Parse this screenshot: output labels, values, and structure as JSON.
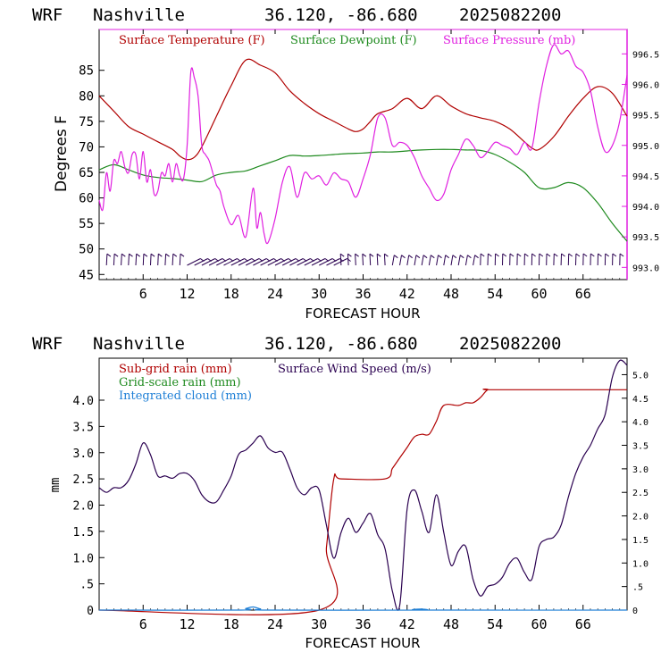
{
  "panels": [
    {
      "header": {
        "model": "WRF",
        "location": "Nashville",
        "coords": "36.120, -86.680",
        "run": "2025082200"
      },
      "xlabel": "FORECAST HOUR",
      "ylabel_left": "Degrees F",
      "legend": [
        "Surface Temperature (F)",
        "Surface Dewpoint (F)",
        "Surface Pressure (mb)"
      ]
    },
    {
      "header": {
        "model": "WRF",
        "location": "Nashville",
        "coords": "36.120, -86.680",
        "run": "2025082200"
      },
      "xlabel": "FORECAST HOUR",
      "ylabel_left": "mm",
      "legend": [
        "Sub-grid rain (mm)",
        "Surface Wind Speed (m/s)",
        "Grid-scale rain (mm)",
        "Integrated cloud (mm)"
      ]
    }
  ],
  "colors": {
    "temperature": "#b00000",
    "dewpoint": "#1e8a1e",
    "pressure": "#e020e0",
    "subgrid_rain": "#b00000",
    "wind": "#2a0050",
    "gridscale_rain": "#1e8a1e",
    "cloud": "#1e7fd6",
    "frame_left": "#000000",
    "frame_right_top": "#e020e0"
  },
  "chart_data": [
    {
      "type": "line",
      "title": "",
      "xlabel": "FORECAST HOUR",
      "ylabel": "Degrees F",
      "xlim": [
        0,
        72
      ],
      "ylim": [
        44,
        93
      ],
      "y2lim": [
        992.8,
        996.9
      ],
      "xticks": [
        "6",
        "12",
        "18",
        "24",
        "30",
        "36",
        "42",
        "48",
        "54",
        "60",
        "66"
      ],
      "yticks": [
        "45",
        "50",
        "55",
        "60",
        "65",
        "70",
        "75",
        "80",
        "85"
      ],
      "y2ticks": [
        "993.0",
        "993.5",
        "994.0",
        "994.5",
        "995.0",
        "995.5",
        "996.0",
        "996.5"
      ],
      "series": [
        {
          "name": "Surface Temperature (F)",
          "axis": "left",
          "x": [
            0,
            2,
            4,
            6,
            8,
            10,
            11,
            12,
            13,
            14,
            16,
            18,
            20,
            22,
            24,
            26,
            28,
            30,
            32,
            34,
            35,
            36,
            37,
            38,
            40,
            42,
            44,
            46,
            48,
            50,
            52,
            54,
            56,
            58,
            59,
            60,
            62,
            64,
            66,
            68,
            70,
            72
          ],
          "values": [
            80,
            77,
            74,
            72.5,
            71,
            69.5,
            68.2,
            67.5,
            68,
            70,
            76,
            82,
            87,
            86,
            84.5,
            81,
            78.5,
            76.5,
            75,
            73.5,
            73,
            73.5,
            75,
            76.5,
            77.5,
            79.5,
            77.5,
            80,
            78,
            76.5,
            75.7,
            75,
            73.5,
            71,
            69.8,
            69.5,
            72,
            76,
            79.5,
            81.8,
            80.5,
            76
          ]
        },
        {
          "name": "Surface Dewpoint (F)",
          "axis": "left",
          "x": [
            0,
            2,
            4,
            6,
            8,
            10,
            12,
            14,
            16,
            18,
            20,
            22,
            24,
            26,
            28,
            30,
            32,
            34,
            36,
            38,
            40,
            42,
            44,
            46,
            48,
            50,
            52,
            54,
            56,
            58,
            60,
            62,
            64,
            66,
            68,
            70,
            72
          ],
          "values": [
            65.5,
            66.5,
            65.5,
            64.5,
            64,
            63.8,
            63.5,
            63.2,
            64.5,
            65,
            65.3,
            66.3,
            67.3,
            68.3,
            68.2,
            68.3,
            68.5,
            68.7,
            68.8,
            69,
            69,
            69.2,
            69.4,
            69.5,
            69.5,
            69.4,
            69.3,
            68.5,
            67,
            65,
            62,
            62,
            63,
            62,
            59,
            55,
            51.5
          ]
        },
        {
          "name": "Surface Pressure (mb)",
          "axis": "right",
          "x": [
            0,
            0.5,
            1,
            1.5,
            2,
            2.5,
            3,
            3.5,
            4,
            4.5,
            5,
            5.5,
            6,
            6.5,
            7,
            7.5,
            8,
            8.5,
            9,
            9.5,
            10,
            10.5,
            11,
            11.5,
            12,
            12.5,
            13,
            13.5,
            14,
            14.5,
            15,
            15.5,
            16,
            16.5,
            17,
            18,
            19,
            20,
            21,
            21.5,
            22,
            22.5,
            23,
            24,
            25,
            26,
            27,
            28,
            29,
            30,
            31,
            32,
            33,
            34,
            35,
            36,
            37,
            38,
            39,
            40,
            41,
            42,
            43,
            44,
            45,
            46,
            47,
            48,
            49,
            50,
            51,
            52,
            53,
            54,
            55,
            56,
            57,
            58,
            59,
            60,
            61,
            62,
            63,
            64,
            65,
            66,
            67,
            68,
            69,
            70,
            71,
            72
          ],
          "values": [
            994.1,
            993.95,
            994.55,
            994.25,
            994.75,
            994.7,
            994.9,
            994.65,
            994.55,
            994.85,
            994.85,
            994.45,
            994.9,
            994.4,
            994.6,
            994.2,
            994.25,
            994.55,
            994.5,
            994.7,
            994.4,
            994.7,
            994.5,
            994.45,
            995.0,
            996.2,
            996.1,
            995.8,
            995.0,
            994.85,
            994.75,
            994.55,
            994.35,
            994.25,
            994.0,
            993.7,
            993.85,
            993.5,
            994.3,
            993.65,
            993.9,
            993.55,
            993.4,
            993.8,
            994.4,
            994.65,
            994.15,
            994.55,
            994.45,
            994.5,
            994.35,
            994.55,
            994.45,
            994.4,
            994.15,
            994.45,
            994.85,
            995.45,
            995.45,
            995.0,
            995.05,
            995.0,
            994.8,
            994.5,
            994.3,
            994.1,
            994.2,
            994.6,
            994.85,
            995.1,
            995.0,
            994.8,
            994.9,
            995.05,
            995.0,
            994.95,
            994.85,
            995.05,
            994.95,
            995.7,
            996.3,
            996.65,
            996.5,
            996.55,
            996.3,
            996.2,
            995.9,
            995.3,
            994.9,
            995.0,
            995.4,
            996.15
          ]
        }
      ]
    },
    {
      "type": "line",
      "title": "",
      "xlabel": "FORECAST HOUR",
      "ylabel": "mm",
      "xlim": [
        0,
        72
      ],
      "ylim": [
        0,
        4.8
      ],
      "y2lim": [
        0,
        5.35
      ],
      "xticks": [
        "6",
        "12",
        "18",
        "24",
        "30",
        "36",
        "42",
        "48",
        "54",
        "60",
        "66"
      ],
      "yticks": [
        "0",
        ".5",
        "1.0",
        "1.5",
        "2.0",
        "2.5",
        "3.0",
        "3.5",
        "4.0"
      ],
      "y2ticks": [
        "0",
        ".5",
        "1.0",
        "1.5",
        "2.0",
        "2.5",
        "3.0",
        "3.5",
        "4.0",
        "4.5",
        "5.0"
      ],
      "series": [
        {
          "name": "Sub-grid rain (mm)",
          "axis": "left",
          "x": [
            0,
            30,
            31,
            32,
            33,
            39,
            40,
            41,
            42,
            43,
            44,
            45,
            46,
            47,
            49,
            50,
            51,
            52,
            53,
            54,
            72
          ],
          "values": [
            0,
            0,
            1.2,
            2.5,
            2.5,
            2.5,
            2.7,
            2.9,
            3.1,
            3.3,
            3.35,
            3.35,
            3.6,
            3.9,
            3.9,
            3.95,
            3.95,
            4.05,
            4.2,
            4.2,
            4.2
          ]
        },
        {
          "name": "Surface Wind Speed (m/s)",
          "axis": "right",
          "x": [
            0,
            1,
            2,
            3,
            4,
            5,
            6,
            7,
            8,
            9,
            10,
            11,
            12,
            13,
            14,
            15,
            16,
            17,
            18,
            19,
            20,
            21,
            22,
            23,
            24,
            25,
            26,
            27,
            28,
            29,
            30,
            31,
            32,
            33,
            34,
            35,
            36,
            37,
            38,
            39,
            40,
            41,
            42,
            43,
            44,
            45,
            46,
            47,
            48,
            49,
            50,
            51,
            52,
            53,
            54,
            55,
            56,
            57,
            58,
            59,
            60,
            61,
            62,
            63,
            64,
            65,
            66,
            67,
            68,
            69,
            70,
            71,
            72
          ],
          "values": [
            2.6,
            2.5,
            2.6,
            2.6,
            2.75,
            3.1,
            3.55,
            3.3,
            2.85,
            2.85,
            2.8,
            2.9,
            2.9,
            2.75,
            2.45,
            2.3,
            2.3,
            2.55,
            2.85,
            3.3,
            3.4,
            3.55,
            3.7,
            3.45,
            3.35,
            3.35,
            3.0,
            2.6,
            2.45,
            2.6,
            2.55,
            1.8,
            1.1,
            1.65,
            1.95,
            1.65,
            1.85,
            2.05,
            1.6,
            1.3,
            0.4,
            0.1,
            2.15,
            2.55,
            2.1,
            1.65,
            2.45,
            1.65,
            0.95,
            1.25,
            1.35,
            0.65,
            0.3,
            0.5,
            0.55,
            0.7,
            1.0,
            1.1,
            0.8,
            0.65,
            1.35,
            1.5,
            1.55,
            1.8,
            2.4,
            2.9,
            3.25,
            3.5,
            3.85,
            4.15,
            4.95,
            5.3,
            5.2
          ]
        },
        {
          "name": "Integrated cloud (mm)",
          "axis": "left",
          "x": [
            0,
            19,
            20,
            21,
            22,
            23,
            43,
            44,
            45,
            72
          ],
          "values": [
            0,
            0,
            0.03,
            0.06,
            0.02,
            0,
            0,
            0.02,
            0,
            0
          ]
        }
      ]
    }
  ]
}
